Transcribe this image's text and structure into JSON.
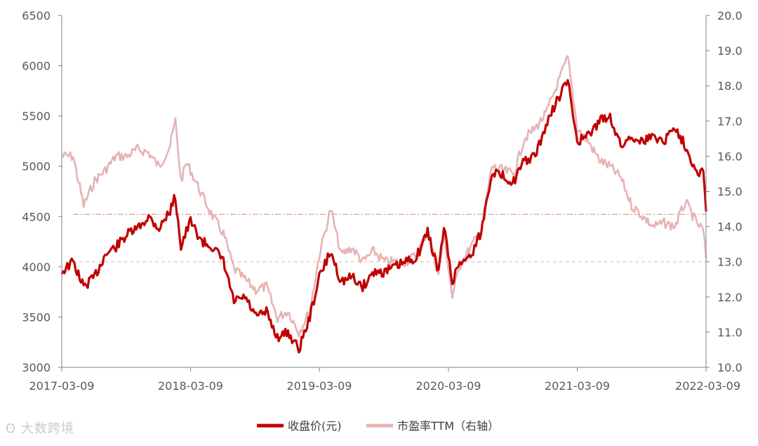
{
  "watermark": {
    "text": "大数跨境"
  },
  "chart_data": {
    "type": "line",
    "title": "",
    "xlabel": "",
    "ylabel": "",
    "y2label": "",
    "x_range": [
      "2017-03-09",
      "2022-03-09"
    ],
    "x_ticks": [
      "2017-03-09",
      "2018-03-09",
      "2019-03-09",
      "2020-03-09",
      "2021-03-09",
      "2022-03-09"
    ],
    "ylim": [
      3000,
      6500
    ],
    "y_ticks": [
      "3000",
      "3500",
      "4000",
      "4500",
      "5000",
      "5500",
      "6000",
      "6500"
    ],
    "y2lim": [
      10.0,
      20.0
    ],
    "y2_ticks": [
      "10.0",
      "11.0",
      "12.0",
      "13.0",
      "14.0",
      "15.0",
      "16.0",
      "17.0",
      "18.0",
      "19.0",
      "20.0"
    ],
    "grid": false,
    "legend_position": "bottom",
    "colors": {
      "close": "#c00000",
      "pe": "#e6b3b3",
      "pe_ref": "#d98080"
    },
    "reference_lines": [
      {
        "axis": "y2",
        "value": 14.35,
        "style": "dash-dot",
        "color": "#d98080"
      },
      {
        "axis": "y2",
        "value": 13.0,
        "style": "dashed",
        "color": "#e6b3b3"
      }
    ],
    "series": [
      {
        "name": "收盘价(元)",
        "axis": "y",
        "points": [
          [
            "2017-03-09",
            3950
          ],
          [
            "2017-04-10",
            4050
          ],
          [
            "2017-05-10",
            3800
          ],
          [
            "2017-06-10",
            3900
          ],
          [
            "2017-07-10",
            4120
          ],
          [
            "2017-08-10",
            4200
          ],
          [
            "2017-09-10",
            4320
          ],
          [
            "2017-10-10",
            4380
          ],
          [
            "2017-11-10",
            4500
          ],
          [
            "2017-12-10",
            4380
          ],
          [
            "2018-01-10",
            4560
          ],
          [
            "2018-01-25",
            4700
          ],
          [
            "2018-02-10",
            4200
          ],
          [
            "2018-02-25",
            4350
          ],
          [
            "2018-03-09",
            4450
          ],
          [
            "2018-04-10",
            4250
          ],
          [
            "2018-05-10",
            4200
          ],
          [
            "2018-06-10",
            4050
          ],
          [
            "2018-07-10",
            3650
          ],
          [
            "2018-08-10",
            3700
          ],
          [
            "2018-09-10",
            3500
          ],
          [
            "2018-10-10",
            3550
          ],
          [
            "2018-11-10",
            3300
          ],
          [
            "2018-12-10",
            3350
          ],
          [
            "2019-01-10",
            3180
          ],
          [
            "2019-02-10",
            3500
          ],
          [
            "2019-03-09",
            3900
          ],
          [
            "2019-04-10",
            4150
          ],
          [
            "2019-05-10",
            3850
          ],
          [
            "2019-06-10",
            3900
          ],
          [
            "2019-07-10",
            3800
          ],
          [
            "2019-08-10",
            3950
          ],
          [
            "2019-09-10",
            3950
          ],
          [
            "2019-10-10",
            4000
          ],
          [
            "2019-11-10",
            4050
          ],
          [
            "2019-12-10",
            4100
          ],
          [
            "2020-01-10",
            4350
          ],
          [
            "2020-02-10",
            3950
          ],
          [
            "2020-02-25",
            4400
          ],
          [
            "2020-03-20",
            3850
          ],
          [
            "2020-04-10",
            4050
          ],
          [
            "2020-05-10",
            4100
          ],
          [
            "2020-06-10",
            4350
          ],
          [
            "2020-07-10",
            4950
          ],
          [
            "2020-08-10",
            4900
          ],
          [
            "2020-09-10",
            4850
          ],
          [
            "2020-10-10",
            5050
          ],
          [
            "2020-11-10",
            5100
          ],
          [
            "2020-12-10",
            5400
          ],
          [
            "2021-01-10",
            5650
          ],
          [
            "2021-02-10",
            5850
          ],
          [
            "2021-03-09",
            5250
          ],
          [
            "2021-04-10",
            5300
          ],
          [
            "2021-05-10",
            5450
          ],
          [
            "2021-06-10",
            5500
          ],
          [
            "2021-07-10",
            5200
          ],
          [
            "2021-08-10",
            5300
          ],
          [
            "2021-09-10",
            5250
          ],
          [
            "2021-10-10",
            5300
          ],
          [
            "2021-11-10",
            5250
          ],
          [
            "2021-12-10",
            5400
          ],
          [
            "2022-01-10",
            5200
          ],
          [
            "2022-02-10",
            4950
          ],
          [
            "2022-03-01",
            4950
          ],
          [
            "2022-03-09",
            4550
          ]
        ]
      },
      {
        "name": "市盈率TTM（右轴）",
        "axis": "y2",
        "points": [
          [
            "2017-03-09",
            16.0
          ],
          [
            "2017-04-10",
            16.0
          ],
          [
            "2017-05-10",
            14.6
          ],
          [
            "2017-06-10",
            15.3
          ],
          [
            "2017-07-10",
            15.6
          ],
          [
            "2017-08-10",
            16.0
          ],
          [
            "2017-09-10",
            16.0
          ],
          [
            "2017-10-10",
            16.2
          ],
          [
            "2017-11-10",
            16.1
          ],
          [
            "2017-12-10",
            15.7
          ],
          [
            "2018-01-10",
            16.3
          ],
          [
            "2018-01-25",
            17.0
          ],
          [
            "2018-02-10",
            15.3
          ],
          [
            "2018-02-25",
            15.8
          ],
          [
            "2018-03-09",
            15.6
          ],
          [
            "2018-04-10",
            14.9
          ],
          [
            "2018-05-10",
            14.3
          ],
          [
            "2018-06-10",
            13.8
          ],
          [
            "2018-07-10",
            12.8
          ],
          [
            "2018-08-10",
            12.5
          ],
          [
            "2018-09-10",
            12.2
          ],
          [
            "2018-10-10",
            12.3
          ],
          [
            "2018-11-10",
            11.4
          ],
          [
            "2018-12-10",
            11.6
          ],
          [
            "2019-01-10",
            11.0
          ],
          [
            "2019-02-10",
            11.6
          ],
          [
            "2019-03-09",
            13.2
          ],
          [
            "2019-04-10",
            14.5
          ],
          [
            "2019-05-10",
            13.2
          ],
          [
            "2019-06-10",
            13.4
          ],
          [
            "2019-07-10",
            13.0
          ],
          [
            "2019-08-10",
            13.3
          ],
          [
            "2019-09-10",
            13.0
          ],
          [
            "2019-10-10",
            13.0
          ],
          [
            "2019-11-10",
            13.0
          ],
          [
            "2019-12-10",
            13.2
          ],
          [
            "2020-01-10",
            13.9
          ],
          [
            "2020-02-10",
            12.6
          ],
          [
            "2020-02-25",
            13.8
          ],
          [
            "2020-03-20",
            12.0
          ],
          [
            "2020-04-10",
            12.9
          ],
          [
            "2020-05-10",
            13.4
          ],
          [
            "2020-06-10",
            13.9
          ],
          [
            "2020-07-10",
            15.7
          ],
          [
            "2020-08-10",
            15.6
          ],
          [
            "2020-09-10",
            15.5
          ],
          [
            "2020-10-10",
            16.5
          ],
          [
            "2020-11-10",
            16.8
          ],
          [
            "2020-12-10",
            17.2
          ],
          [
            "2021-01-10",
            18.0
          ],
          [
            "2021-02-10",
            18.8
          ],
          [
            "2021-03-09",
            16.8
          ],
          [
            "2021-04-10",
            16.4
          ],
          [
            "2021-05-10",
            15.9
          ],
          [
            "2021-06-10",
            15.7
          ],
          [
            "2021-07-10",
            15.4
          ],
          [
            "2021-08-10",
            14.6
          ],
          [
            "2021-09-10",
            14.3
          ],
          [
            "2021-10-10",
            14.0
          ],
          [
            "2021-11-10",
            14.1
          ],
          [
            "2021-12-10",
            14.0
          ],
          [
            "2022-01-10",
            14.7
          ],
          [
            "2022-02-10",
            14.1
          ],
          [
            "2022-03-01",
            13.9
          ],
          [
            "2022-03-09",
            13.1
          ]
        ]
      }
    ]
  }
}
